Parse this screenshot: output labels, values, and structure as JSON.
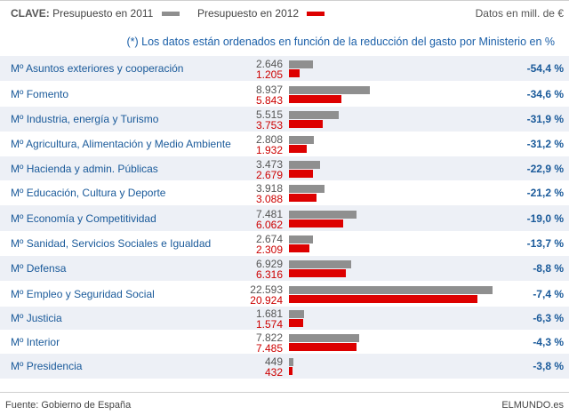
{
  "legend": {
    "key_label": "CLAVE:",
    "label_2011": "Presupuesto en 2011",
    "label_2012": "Presupuesto en 2012",
    "units": "Datos en mill. de €",
    "color_2011": "#8f8f8f",
    "color_2012": "#dd0000"
  },
  "note": "(*) Los datos están ordenados en función de la reducción del gasto por Ministerio en %",
  "chart_data": {
    "type": "bar",
    "orientation": "horizontal",
    "categories": [
      "Mº Asuntos exteriores y cooperación",
      "Mº Fomento",
      "Mº Industria, energía y Turismo",
      "Mº Agricultura, Alimentación y Medio Ambiente",
      "Mº Hacienda y admin. Públicas",
      "Mº Educación, Cultura y Deporte",
      "Mº Economía y Competitividad",
      "Mº Sanidad, Servicios Sociales e Igualdad",
      "Mº Defensa",
      "Mº Empleo y Seguridad Social",
      "Mº Justicia",
      "Mº Interior",
      "Mº Presidencia"
    ],
    "series": [
      {
        "name": "Presupuesto en 2011",
        "values": [
          2646,
          8937,
          5515,
          2808,
          3473,
          3918,
          7481,
          2674,
          6929,
          22593,
          1681,
          7822,
          449
        ],
        "labels": [
          "2.646",
          "8.937",
          "5.515",
          "2.808",
          "3.473",
          "3.918",
          "7.481",
          "2.674",
          "6.929",
          "22.593",
          "1.681",
          "7.822",
          "449"
        ]
      },
      {
        "name": "Presupuesto en 2012",
        "values": [
          1205,
          5843,
          3753,
          1932,
          2679,
          3088,
          6062,
          2309,
          6316,
          20924,
          1574,
          7485,
          432
        ],
        "labels": [
          "1.205",
          "5.843",
          "3.753",
          "1.932",
          "2.679",
          "3.088",
          "6.062",
          "2.309",
          "6.316",
          "20.924",
          "1.574",
          "7.485",
          "432"
        ]
      }
    ],
    "change_pct": [
      "-54,4 %",
      "-34,6 %",
      "-31,9 %",
      "-31,2 %",
      "-22,9 %",
      "-21,2 %",
      "-19,0 %",
      "-13,7 %",
      "-8,8 %",
      "-7,4 %",
      "-6,3 %",
      "-4,3 %",
      "-3,8 %"
    ],
    "xlim": [
      0,
      22593
    ]
  },
  "footer": {
    "source": "Fuente: Gobierno de España",
    "brand": "ELMUNDO.es"
  }
}
